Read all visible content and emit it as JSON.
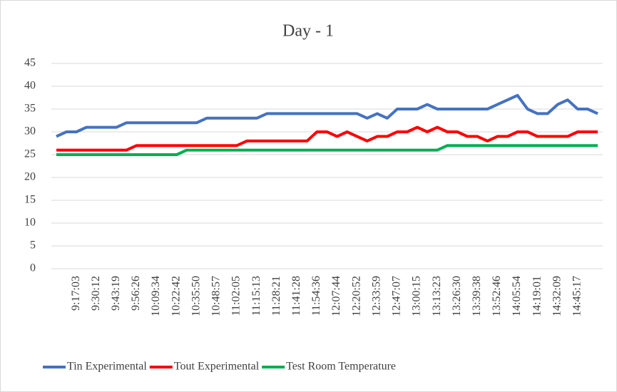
{
  "chart_data": {
    "type": "line",
    "title": "Day - 1",
    "categories": [
      null,
      null,
      "9:17:03",
      null,
      "9:30:12",
      null,
      "9:43:19",
      null,
      "9:56:26",
      null,
      "10:09:34",
      null,
      "10:22:42",
      null,
      "10:35:50",
      null,
      "10:48:57",
      null,
      "11:02:05",
      null,
      "11:15:13",
      null,
      "11:28:21",
      null,
      "11:41:28",
      null,
      "11:54:36",
      null,
      "12:07:44",
      null,
      "12:20:52",
      null,
      "12:33:59",
      null,
      "12:47:07",
      null,
      "13:00:15",
      null,
      "13:13:23",
      null,
      "13:26:30",
      null,
      "13:39:38",
      null,
      "13:52:46",
      null,
      "14:05:54",
      null,
      "14:19:01",
      null,
      "14:32:09",
      null,
      "14:45:17",
      null,
      null
    ],
    "series": [
      {
        "name": "Tin Experimental",
        "color": "#4472c4",
        "values": [
          29,
          30,
          30,
          31,
          31,
          31,
          31,
          32,
          32,
          32,
          32,
          32,
          32,
          32,
          32,
          33,
          33,
          33,
          33,
          33,
          33,
          34,
          34,
          34,
          34,
          34,
          34,
          34,
          34,
          34,
          34,
          33,
          34,
          33,
          35,
          35,
          35,
          36,
          35,
          35,
          35,
          35,
          35,
          35,
          36,
          37,
          38,
          35,
          34,
          34,
          36,
          37,
          35,
          35,
          34
        ]
      },
      {
        "name": "Tout Experimental",
        "color": "#ff0000",
        "values": [
          26,
          26,
          26,
          26,
          26,
          26,
          26,
          26,
          27,
          27,
          27,
          27,
          27,
          27,
          27,
          27,
          27,
          27,
          27,
          28,
          28,
          28,
          28,
          28,
          28,
          28,
          30,
          30,
          29,
          30,
          29,
          28,
          29,
          29,
          30,
          30,
          31,
          30,
          31,
          30,
          30,
          29,
          29,
          28,
          29,
          29,
          30,
          30,
          29,
          29,
          29,
          29,
          30,
          30,
          30
        ]
      },
      {
        "name": "Test Room Temperature",
        "color": "#00b050",
        "values": [
          25,
          25,
          25,
          25,
          25,
          25,
          25,
          25,
          25,
          25,
          25,
          25,
          25,
          26,
          26,
          26,
          26,
          26,
          26,
          26,
          26,
          26,
          26,
          26,
          26,
          26,
          26,
          26,
          26,
          26,
          26,
          26,
          26,
          26,
          26,
          26,
          26,
          26,
          26,
          27,
          27,
          27,
          27,
          27,
          27,
          27,
          27,
          27,
          27,
          27,
          27,
          27,
          27,
          27,
          27
        ]
      }
    ],
    "ylim": [
      0,
      45
    ],
    "yticks": [
      0,
      5,
      10,
      15,
      20,
      25,
      30,
      35,
      40,
      45
    ],
    "grid": true,
    "legend": "bottom"
  }
}
